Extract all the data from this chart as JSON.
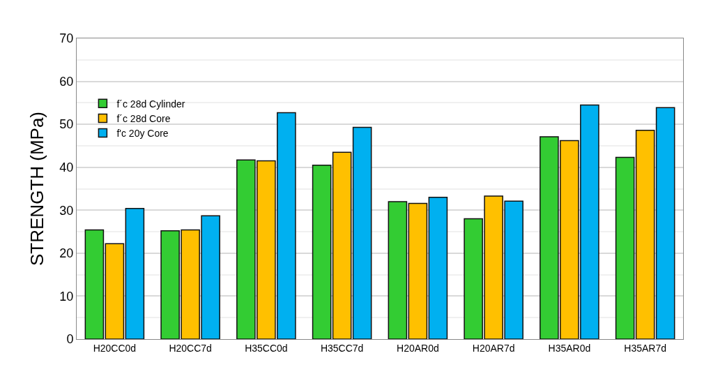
{
  "chart_data": {
    "type": "bar",
    "ylabel": "STRENGTH (MPa)",
    "categories": [
      "H20CC0d",
      "H20CC7d",
      "H35CC0d",
      "H35CC7d",
      "H20AR0d",
      "H20AR7d",
      "H35AR0d",
      "H35AR7d"
    ],
    "series": [
      {
        "name": "f´c 28d Cylinder",
        "color": "#33cc33",
        "values": [
          25.4,
          25.2,
          41.7,
          40.5,
          32.0,
          28.0,
          47.1,
          42.3
        ]
      },
      {
        "name": "f´c 28d Core",
        "color": "#ffc000",
        "values": [
          22.2,
          25.4,
          41.5,
          43.5,
          31.6,
          33.3,
          46.2,
          48.6
        ]
      },
      {
        "name": "f'c 20y Core",
        "color": "#00b0f0",
        "values": [
          30.4,
          28.7,
          52.7,
          49.3,
          33.0,
          32.1,
          54.5,
          53.9
        ]
      }
    ],
    "ylim": [
      0,
      70
    ],
    "yticks": [
      0,
      10,
      20,
      30,
      40,
      50,
      60,
      70
    ],
    "grid": "y",
    "legend": "top left"
  }
}
